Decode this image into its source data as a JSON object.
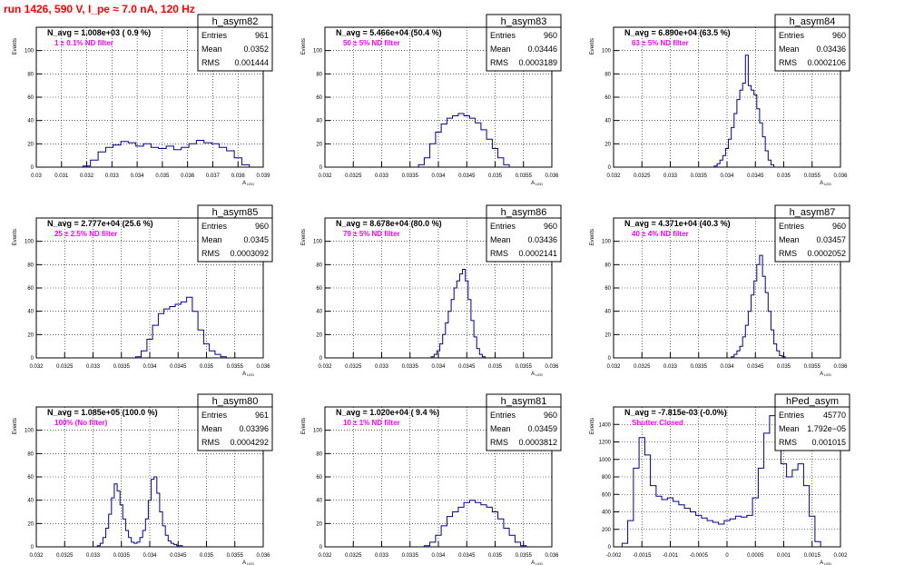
{
  "page_title": "run 1426,   590 V, I_pe ≈ 7.0 nA, 120 Hz",
  "colors": {
    "hist": "#000099",
    "note": "#ff00ff",
    "title": "#ff0000",
    "grid": "#000000"
  },
  "chart_data": [
    {
      "type": "histogram",
      "name": "h_asym82",
      "entries": "961",
      "mean": "0.0352",
      "rms": "0.001444",
      "navg": "N_avg = 1.008e+03 ( 0.9 %)",
      "note": "1 ± 0.1% ND filter",
      "xlabel": "A_LED",
      "ylabel": "Events",
      "xlim": [
        0.03,
        0.039
      ],
      "ylim": [
        0,
        120
      ],
      "xticks": [
        "0.03",
        "0.031",
        "0.032",
        "0.033",
        "0.034",
        "0.035",
        "0.036",
        "0.037",
        "0.038",
        "0.039"
      ],
      "yticks": [
        "0",
        "20",
        "40",
        "60",
        "80",
        "100"
      ],
      "x": [
        0.032,
        0.0323,
        0.0326,
        0.0329,
        0.0332,
        0.0335,
        0.0338,
        0.0341,
        0.0344,
        0.0347,
        0.035,
        0.0353,
        0.0356,
        0.0359,
        0.0362,
        0.0365,
        0.0368,
        0.0371,
        0.0374,
        0.0377,
        0.038,
        0.0383
      ],
      "y": [
        1,
        6,
        13,
        17,
        19,
        22,
        21,
        18,
        20,
        17,
        16,
        18,
        15,
        17,
        20,
        23,
        21,
        20,
        17,
        14,
        8,
        2
      ]
    },
    {
      "type": "histogram",
      "name": "h_asym83",
      "entries": "960",
      "mean": "0.03446",
      "rms": "0.0003189",
      "navg": "N_avg = 5.466e+04 (50.4 %)",
      "note": "50 ± 5% ND filter",
      "xlabel": "A_LED",
      "ylabel": "Events",
      "xlim": [
        0.032,
        0.036
      ],
      "ylim": [
        0,
        120
      ],
      "xticks": [
        "0.032",
        "0.0325",
        "0.033",
        "0.0335",
        "0.034",
        "0.0345",
        "0.035",
        "0.0355",
        "0.036"
      ],
      "yticks": [
        "0",
        "20",
        "40",
        "60",
        "80",
        "100"
      ],
      "x": [
        0.0337,
        0.0338,
        0.0339,
        0.034,
        0.0341,
        0.0342,
        0.0343,
        0.0344,
        0.0345,
        0.0346,
        0.0347,
        0.0348,
        0.0349,
        0.035,
        0.0351,
        0.0352
      ],
      "y": [
        2,
        8,
        20,
        30,
        37,
        42,
        44,
        46,
        44,
        42,
        38,
        32,
        24,
        16,
        8,
        2
      ]
    },
    {
      "type": "histogram",
      "name": "h_asym84",
      "entries": "960",
      "mean": "0.03436",
      "rms": "0.0002106",
      "navg": "N_avg = 6.890e+04 (63.5 %)",
      "note": "63 ± 5% ND filter",
      "xlabel": "A_LED",
      "ylabel": "Events",
      "xlim": [
        0.032,
        0.036
      ],
      "ylim": [
        0,
        120
      ],
      "xticks": [
        "0.032",
        "0.0325",
        "0.033",
        "0.0335",
        "0.034",
        "0.0345",
        "0.035",
        "0.0355",
        "0.036"
      ],
      "yticks": [
        "0",
        "20",
        "40",
        "60",
        "80",
        "100"
      ],
      "x": [
        0.0338,
        0.03385,
        0.0339,
        0.03395,
        0.034,
        0.03405,
        0.0341,
        0.03415,
        0.0342,
        0.03425,
        0.0343,
        0.03435,
        0.0344,
        0.03445,
        0.0345,
        0.03455,
        0.0346,
        0.03465,
        0.0347,
        0.03475,
        0.0348
      ],
      "y": [
        1,
        3,
        6,
        10,
        16,
        24,
        34,
        46,
        58,
        66,
        72,
        96,
        70,
        66,
        62,
        50,
        38,
        26,
        14,
        6,
        2
      ]
    },
    {
      "type": "histogram",
      "name": "h_asym85",
      "entries": "960",
      "mean": "0.0345",
      "rms": "0.0003092",
      "navg": "N_avg = 2.777e+04 (25.6 %)",
      "note": "25 ± 2.5% ND filter",
      "xlabel": "A_LED",
      "ylabel": "Events",
      "xlim": [
        0.032,
        0.036
      ],
      "ylim": [
        0,
        120
      ],
      "xticks": [
        "0.032",
        "0.0325",
        "0.033",
        "0.0335",
        "0.034",
        "0.0345",
        "0.035",
        "0.0355",
        "0.036"
      ],
      "yticks": [
        "0",
        "20",
        "40",
        "60",
        "80",
        "100"
      ],
      "x": [
        0.0338,
        0.0339,
        0.034,
        0.0341,
        0.0342,
        0.0343,
        0.0344,
        0.0345,
        0.0346,
        0.0347,
        0.0348,
        0.0349,
        0.035,
        0.0351,
        0.0352,
        0.0353
      ],
      "y": [
        1,
        6,
        16,
        28,
        38,
        42,
        44,
        46,
        48,
        52,
        40,
        24,
        12,
        6,
        3,
        1
      ]
    },
    {
      "type": "histogram",
      "name": "h_asym86",
      "entries": "960",
      "mean": "0.03436",
      "rms": "0.0002141",
      "navg": "N_avg = 8.678e+04 (80.0 %)",
      "note": "79 ± 5% ND filter",
      "xlabel": "A_LED",
      "ylabel": "Events",
      "xlim": [
        0.032,
        0.036
      ],
      "ylim": [
        0,
        120
      ],
      "xticks": [
        "0.032",
        "0.0325",
        "0.033",
        "0.0335",
        "0.034",
        "0.0345",
        "0.035",
        "0.0355",
        "0.036"
      ],
      "yticks": [
        "0",
        "20",
        "40",
        "60",
        "80",
        "100"
      ],
      "x": [
        0.0339,
        0.03395,
        0.034,
        0.03405,
        0.0341,
        0.03415,
        0.0342,
        0.03425,
        0.0343,
        0.03435,
        0.0344,
        0.03445,
        0.0345,
        0.03455,
        0.0346,
        0.03465,
        0.0347,
        0.03475,
        0.0348
      ],
      "y": [
        1,
        3,
        6,
        12,
        20,
        30,
        40,
        50,
        60,
        66,
        72,
        76,
        66,
        50,
        32,
        18,
        8,
        3,
        1
      ]
    },
    {
      "type": "histogram",
      "name": "h_asym87",
      "entries": "960",
      "mean": "0.03457",
      "rms": "0.0002052",
      "navg": "N_avg = 4.371e+04 (40.3 %)",
      "note": "40 ± 4% ND filter",
      "xlabel": "A_LED",
      "ylabel": "Events",
      "xlim": [
        0.032,
        0.036
      ],
      "ylim": [
        0,
        120
      ],
      "xticks": [
        "0.032",
        "0.0325",
        "0.033",
        "0.0335",
        "0.034",
        "0.0345",
        "0.035",
        "0.0355",
        "0.036"
      ],
      "yticks": [
        "0",
        "20",
        "40",
        "60",
        "80",
        "100"
      ],
      "x": [
        0.0341,
        0.03415,
        0.0342,
        0.03425,
        0.0343,
        0.03435,
        0.0344,
        0.03445,
        0.0345,
        0.03455,
        0.0346,
        0.03465,
        0.0347,
        0.03475,
        0.0348,
        0.03485,
        0.0349,
        0.03495,
        0.035
      ],
      "y": [
        1,
        3,
        6,
        10,
        18,
        28,
        40,
        54,
        66,
        80,
        88,
        70,
        56,
        40,
        24,
        12,
        6,
        2,
        1
      ]
    },
    {
      "type": "histogram",
      "name": "h_asym80",
      "entries": "961",
      "mean": "0.03396",
      "rms": "0.0004292",
      "navg": "N_avg = 1.085e+05 (100.0 %)",
      "note": "100% (No filter)",
      "xlabel": "A_LED",
      "ylabel": "Events",
      "xlim": [
        0.032,
        0.036
      ],
      "ylim": [
        0,
        120
      ],
      "xticks": [
        "0.032",
        "0.0325",
        "0.033",
        "0.0335",
        "0.034",
        "0.0345",
        "0.035",
        "0.0355",
        "0.036"
      ],
      "yticks": [
        "0",
        "20",
        "40",
        "60",
        "80",
        "100"
      ],
      "x": [
        0.0331,
        0.03315,
        0.0332,
        0.03325,
        0.0333,
        0.03335,
        0.0334,
        0.03345,
        0.0335,
        0.03355,
        0.0336,
        0.03365,
        0.0337,
        0.03375,
        0.0338,
        0.03385,
        0.0339,
        0.03395,
        0.034,
        0.03405,
        0.0341,
        0.03415,
        0.0342,
        0.03425,
        0.0343,
        0.03435,
        0.0344,
        0.03445,
        0.0345,
        0.03455
      ],
      "y": [
        1,
        3,
        8,
        16,
        28,
        42,
        54,
        48,
        36,
        24,
        14,
        8,
        4,
        3,
        4,
        8,
        14,
        24,
        40,
        58,
        60,
        46,
        30,
        18,
        10,
        5,
        3,
        2,
        1,
        1
      ]
    },
    {
      "type": "histogram",
      "name": "h_asym81",
      "entries": "960",
      "mean": "0.03459",
      "rms": "0.0003812",
      "navg": "N_avg = 1.020e+04 ( 9.4 %)",
      "note": "10 ± 1% ND filter",
      "xlabel": "A_LED",
      "ylabel": "Events",
      "xlim": [
        0.032,
        0.036
      ],
      "ylim": [
        0,
        120
      ],
      "xticks": [
        "0.032",
        "0.0325",
        "0.033",
        "0.0335",
        "0.034",
        "0.0345",
        "0.035",
        "0.0355",
        "0.036"
      ],
      "yticks": [
        "0",
        "20",
        "40",
        "60",
        "80",
        "100"
      ],
      "x": [
        0.0338,
        0.0339,
        0.034,
        0.0341,
        0.0342,
        0.0343,
        0.0344,
        0.0345,
        0.0346,
        0.0347,
        0.0348,
        0.0349,
        0.035,
        0.0351,
        0.0352,
        0.0353,
        0.0354,
        0.0355
      ],
      "y": [
        1,
        4,
        10,
        18,
        26,
        30,
        34,
        38,
        40,
        38,
        36,
        34,
        30,
        24,
        16,
        10,
        4,
        1
      ]
    },
    {
      "type": "histogram",
      "name": "hPed_asym",
      "entries": "45770",
      "mean": "1.792e−05",
      "rms": "0.001015",
      "navg": "N_avg = -7.815e-03 (-0.0%)",
      "note": "Shutter Closed",
      "xlabel": "A_LED",
      "ylabel": "Events",
      "xlim": [
        -0.002,
        0.002
      ],
      "ylim": [
        0,
        1600
      ],
      "xticks": [
        "-0.002",
        "-0.0015",
        "-0.001",
        "-0.0005",
        "0",
        "0.0005",
        "0.001",
        "0.0015",
        "0.002"
      ],
      "yticks": [
        "0",
        "200",
        "400",
        "600",
        "800",
        "1000",
        "1200",
        "1400"
      ],
      "x": [
        -0.0018,
        -0.0017,
        -0.0016,
        -0.0015,
        -0.0014,
        -0.0013,
        -0.0012,
        -0.0011,
        -0.001,
        -0.0009,
        -0.0008,
        -0.0007,
        -0.0006,
        -0.0005,
        -0.0004,
        -0.0003,
        -0.0002,
        -0.0001,
        0.0,
        0.0001,
        0.0002,
        0.0003,
        0.0004,
        0.0005,
        0.0006,
        0.0007,
        0.0008,
        0.0009,
        0.001,
        0.0011,
        0.0012,
        0.0013,
        0.0014,
        0.0015,
        0.0016
      ],
      "y": [
        40,
        300,
        900,
        1250,
        1050,
        700,
        580,
        540,
        560,
        520,
        480,
        440,
        400,
        360,
        330,
        300,
        280,
        260,
        300,
        320,
        350,
        340,
        360,
        560,
        900,
        1300,
        1500,
        1350,
        950,
        800,
        880,
        950,
        700,
        350,
        60
      ]
    }
  ]
}
